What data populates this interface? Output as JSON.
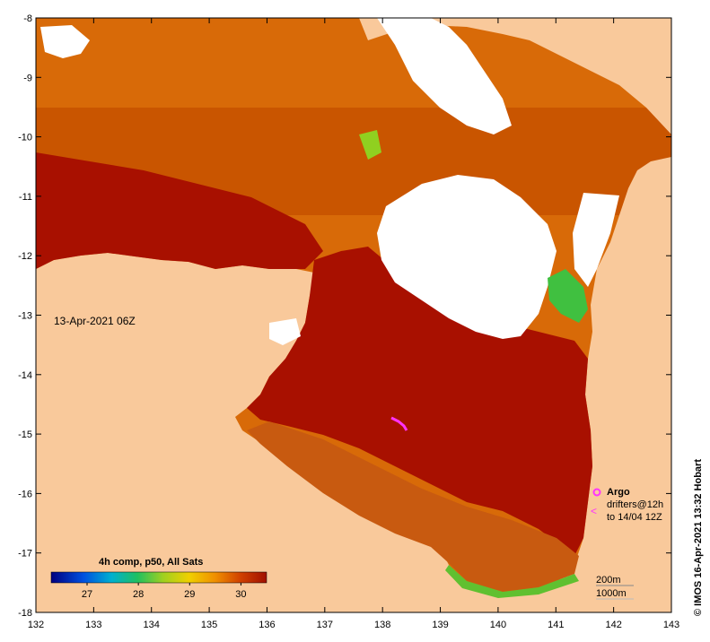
{
  "map": {
    "datetime_label": "13-Apr-2021 06Z",
    "colors": {
      "land": "#f9c99b",
      "cloud": "#ffffff",
      "sst_warm": "#a81000",
      "sst_mid": "#cc5a00",
      "sst_orange": "#e08a10",
      "sst_yellow": "#f0c020",
      "sst_green": "#40c040",
      "argo": "#ff33ff"
    },
    "x_axis": {
      "min": 132,
      "max": 143,
      "ticks": [
        "132",
        "133",
        "134",
        "135",
        "136",
        "137",
        "138",
        "139",
        "140",
        "141",
        "142",
        "143"
      ]
    },
    "y_axis": {
      "min": -18,
      "max": -8,
      "ticks": [
        "-8",
        "-9",
        "-10",
        "-11",
        "-12",
        "-13",
        "-14",
        "-15",
        "-16",
        "-17",
        "-18"
      ]
    },
    "colorbar": {
      "title": "4h comp, p50, All Sats",
      "tick_labels": [
        "27",
        "28",
        "29",
        "30"
      ],
      "tick_values": [
        27,
        28,
        29,
        30
      ],
      "range": [
        26.3,
        30.5
      ]
    },
    "legend": {
      "argo_label": "Argo",
      "drifters_label": "drifters@12h",
      "drifters_to": "to 14/04 12Z"
    },
    "contours": {
      "c200": "200m",
      "c1000": "1000m"
    },
    "credit": "© IMOS 16-Apr-2021 13:32 Hobart"
  }
}
